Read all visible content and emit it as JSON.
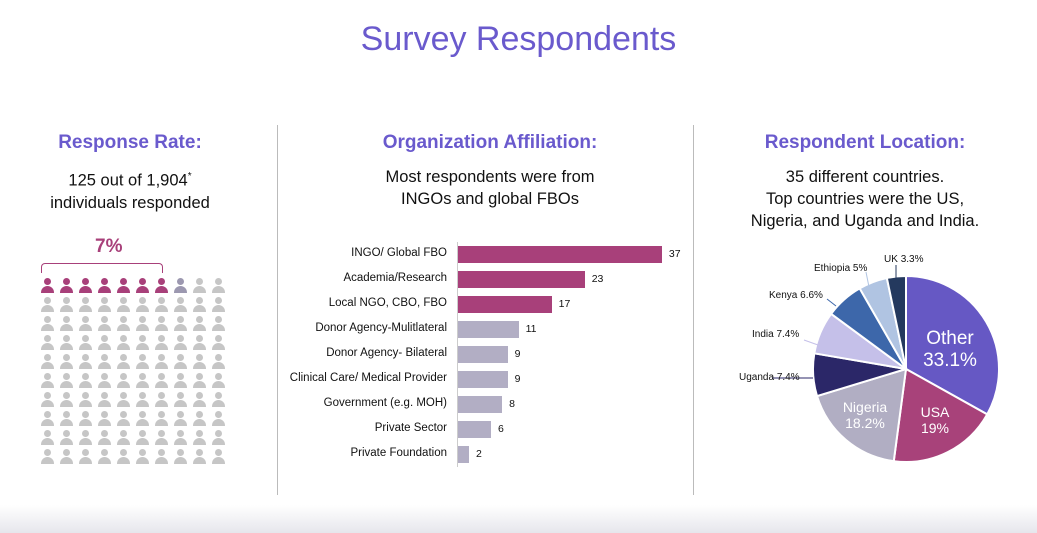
{
  "title": "Survey Respondents",
  "response": {
    "heading": "Response Rate:",
    "line1": "125 out of 1,904",
    "footnote_mark": "*",
    "line2": "individuals responded",
    "percent_label": "7%",
    "icon_grid": {
      "total": 100,
      "highlighted": 7,
      "partial": 1
    }
  },
  "colors": {
    "accent": "#6a5acd",
    "highlight": "#a8407a",
    "partial": "#9c98b0",
    "muted": "#c6c6c6",
    "bar_secondary": "#b2aec4"
  },
  "chart_data": [
    {
      "type": "bar",
      "orientation": "horizontal",
      "title": "Organization Affiliation:",
      "subtitle_lines": [
        "Most respondents were from",
        "INGOs and global FBOs"
      ],
      "categories": [
        "INGO/ Global FBO",
        "Academia/Research",
        "Local NGO, CBO, FBO",
        "Donor Agency-Mulitlateral",
        "Donor Agency- Bilateral",
        "Clinical Care/ Medical Provider",
        "Government (e.g. MOH)",
        "Private Sector",
        "Private Foundation"
      ],
      "values": [
        37,
        23,
        17,
        11,
        9,
        9,
        8,
        6,
        2
      ],
      "highlighted_count": 3,
      "xlim": [
        0,
        40
      ]
    },
    {
      "type": "pie",
      "title": "Respondent Location:",
      "subtitle_lines": [
        "35 different countries.",
        "Top countries were the US,",
        "Nigeria, and Uganda and India."
      ],
      "slices": [
        {
          "name": "Other",
          "value": 33.1,
          "label": "33.1%",
          "color": "#6658c4"
        },
        {
          "name": "USA",
          "value": 19,
          "label": "19%",
          "color": "#a8427a"
        },
        {
          "name": "Nigeria",
          "value": 18.2,
          "label": "18.2%",
          "color": "#b1aec3"
        },
        {
          "name": "Uganda",
          "value": 7.4,
          "label": "7.4%",
          "color": "#2b2768"
        },
        {
          "name": "India",
          "value": 7.4,
          "label": "7.4%",
          "color": "#c5c0e9"
        },
        {
          "name": "Kenya",
          "value": 6.6,
          "label": "6.6%",
          "color": "#3d67aa"
        },
        {
          "name": "Ethiopia",
          "value": 5,
          "label": "5%",
          "color": "#b0c4e2"
        },
        {
          "name": "UK",
          "value": 3.3,
          "label": "3.3%",
          "color": "#24395e"
        }
      ]
    }
  ]
}
